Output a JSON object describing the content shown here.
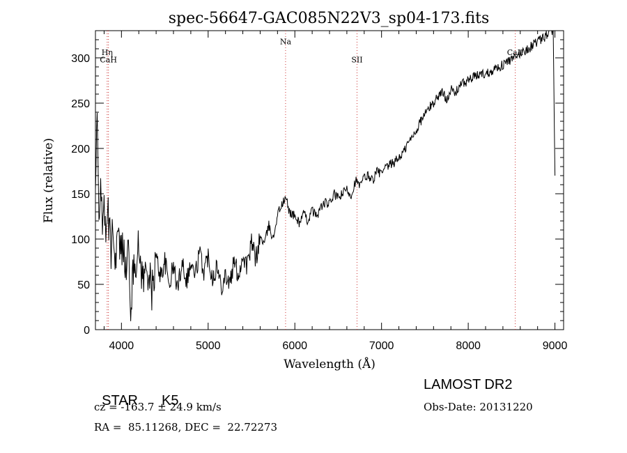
{
  "chart_data": {
    "type": "line",
    "title": "spec-56647-GAC085N22V3_sp04-173.fits",
    "xlabel": "Wavelength (Å)",
    "ylabel": "Flux (relative)",
    "xlim": [
      3700,
      9100
    ],
    "ylim": [
      0,
      330
    ],
    "xticks": [
      "4000",
      "5000",
      "6000",
      "7000",
      "8000",
      "9000"
    ],
    "yticks": [
      "0",
      "50",
      "100",
      "150",
      "200",
      "250",
      "300"
    ],
    "grid": false,
    "series": [
      {
        "x": [
          3700,
          3720,
          3740,
          3760,
          3780,
          3800,
          3820,
          3840,
          3860,
          3880,
          3900,
          3920,
          3950,
          3980,
          4000,
          4030,
          4050,
          4080,
          4100,
          4150,
          4200,
          4250,
          4300,
          4350,
          4400,
          4450,
          4500,
          4550,
          4600,
          4650,
          4700,
          4750,
          4800,
          4850,
          4900,
          4950,
          5000,
          5050,
          5100,
          5150,
          5200,
          5250,
          5300,
          5350,
          5400,
          5450,
          5500,
          5550,
          5600,
          5650,
          5700,
          5750,
          5800,
          5850,
          5900,
          5930,
          5960,
          6000,
          6050,
          6100,
          6150,
          6200,
          6250,
          6300,
          6350,
          6400,
          6450,
          6500,
          6550,
          6600,
          6650,
          6700,
          6750,
          6800,
          6850,
          6900,
          6950,
          7000,
          7050,
          7100,
          7150,
          7200,
          7250,
          7300,
          7350,
          7400,
          7450,
          7500,
          7550,
          7600,
          7650,
          7700,
          7750,
          7800,
          7850,
          7900,
          7950,
          8000,
          8050,
          8100,
          8150,
          8200,
          8250,
          8300,
          8350,
          8400,
          8450,
          8500,
          8550,
          8600,
          8650,
          8700,
          8750,
          8800,
          8850,
          8900,
          8950,
          8980,
          9000
        ],
        "values": [
          150,
          230,
          120,
          180,
          95,
          160,
          80,
          140,
          110,
          85,
          130,
          70,
          105,
          90,
          85,
          100,
          60,
          95,
          22,
          75,
          88,
          55,
          70,
          40,
          80,
          60,
          75,
          50,
          70,
          45,
          78,
          55,
          72,
          60,
          85,
          65,
          82,
          58,
          70,
          48,
          62,
          50,
          75,
          60,
          82,
          70,
          95,
          78,
          102,
          95,
          115,
          100,
          128,
          138,
          145,
          132,
          128,
          125,
          118,
          128,
          120,
          132,
          125,
          135,
          140,
          138,
          150,
          145,
          150,
          155,
          148,
          165,
          158,
          168,
          170,
          165,
          175,
          172,
          178,
          182,
          185,
          190,
          195,
          205,
          212,
          220,
          230,
          238,
          245,
          250,
          258,
          262,
          255,
          265,
          260,
          270,
          272,
          275,
          278,
          280,
          283,
          282,
          285,
          288,
          290,
          292,
          296,
          298,
          300,
          305,
          308,
          310,
          315,
          318,
          320,
          325,
          330,
          328,
          170
        ],
        "noise": 9,
        "color": "#000000"
      }
    ],
    "lines": [
      {
        "label": "Hη",
        "x": 3835,
        "label_y": 303
      },
      {
        "label": "CaH",
        "x": 3850,
        "label_y": 295
      },
      {
        "label": "Na",
        "x": 5893,
        "label_y": 315
      },
      {
        "label": "SII",
        "x": 6717,
        "label_y": 295
      },
      {
        "label": "CaII",
        "x": 8542,
        "label_y": 303
      }
    ],
    "line_color": "#cc3333"
  },
  "info": {
    "class_label": "STAR",
    "subclass": "K5",
    "survey": "LAMOST DR2",
    "cz": "cz = -163.7 ± 24.9 km/s",
    "obs_date": "Obs-Date: 20131220",
    "radec": "RA =  85.11268, DEC =  22.72273"
  }
}
